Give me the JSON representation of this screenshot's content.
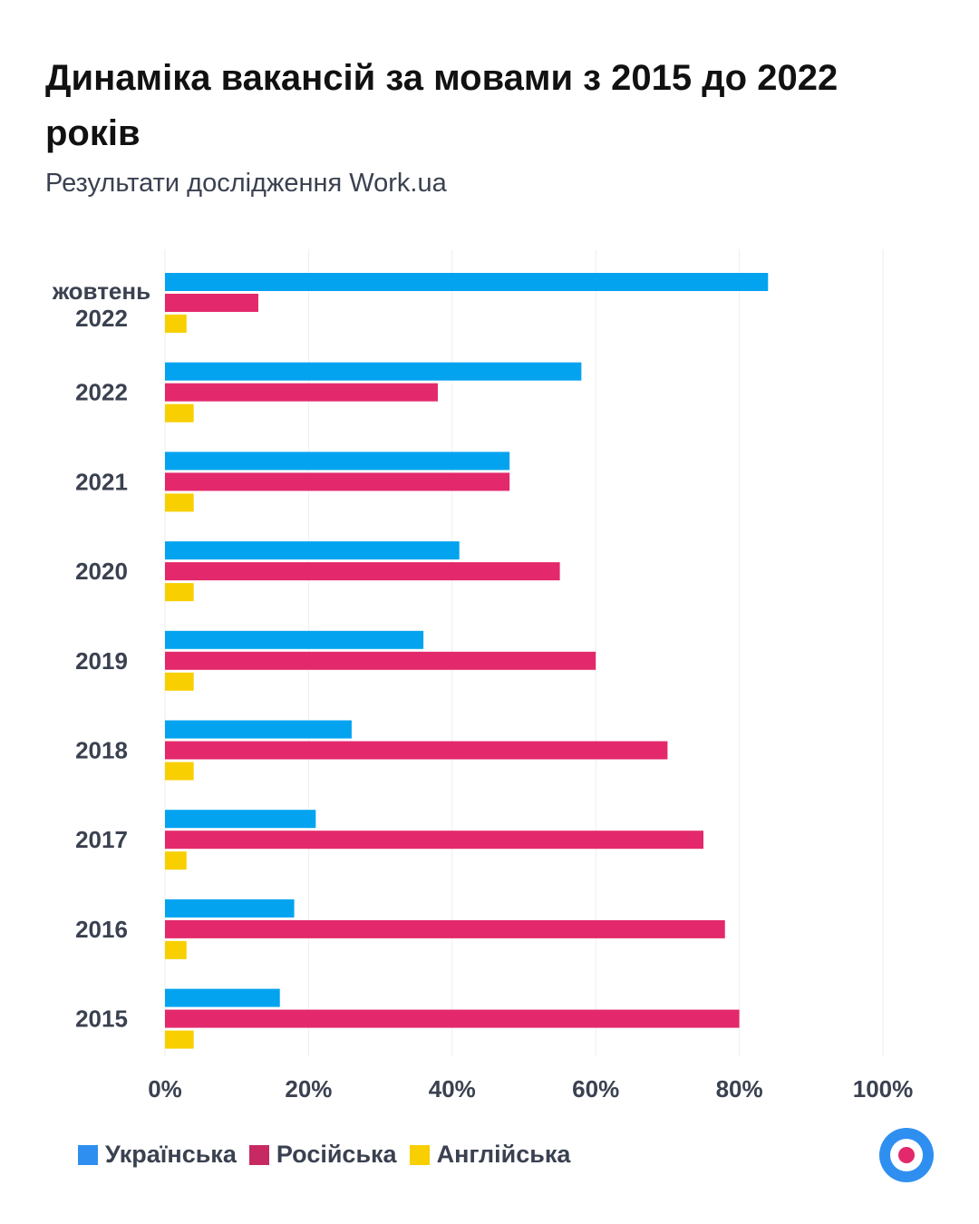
{
  "chart_data": {
    "type": "bar",
    "orientation": "horizontal",
    "title": "Динаміка вакансій за мовами з 2015 до 2022 років",
    "subtitle": "Результати дослідження Work.ua",
    "categories": [
      [
        "жовтень",
        "2022"
      ],
      [
        "2022"
      ],
      [
        "2021"
      ],
      [
        "2020"
      ],
      [
        "2019"
      ],
      [
        "2018"
      ],
      [
        "2017"
      ],
      [
        "2016"
      ],
      [
        "2015"
      ]
    ],
    "series": [
      {
        "name": "Українська",
        "color": "#03a3f0",
        "values": [
          84,
          58,
          48,
          41,
          36,
          26,
          21,
          18,
          16
        ]
      },
      {
        "name": "Російська",
        "color": "#e3296b",
        "values": [
          13,
          38,
          48,
          55,
          60,
          70,
          75,
          78,
          80
        ]
      },
      {
        "name": "Англійська",
        "color": "#f8cf00",
        "values": [
          3,
          4,
          4,
          4,
          4,
          4,
          3,
          3,
          4
        ]
      }
    ],
    "xlim": [
      0,
      100
    ],
    "xticks": [
      "0%",
      "20%",
      "40%",
      "60%",
      "80%",
      "100%"
    ],
    "grid": true,
    "legend_position": "bottom-left"
  }
}
